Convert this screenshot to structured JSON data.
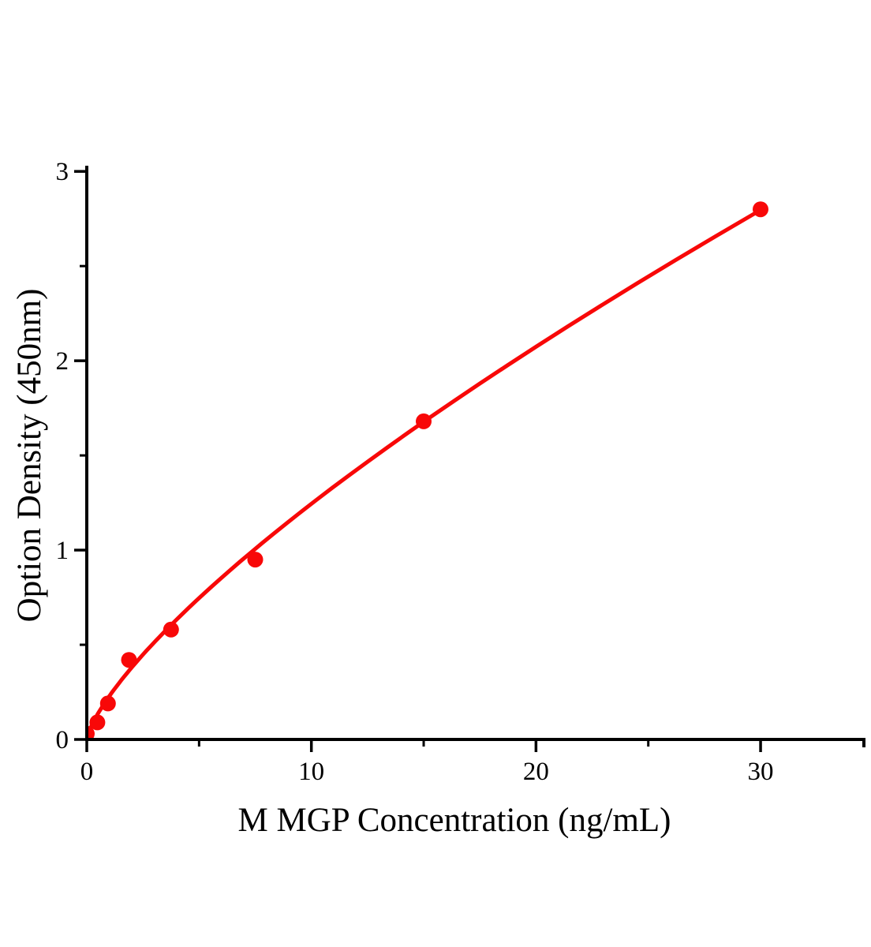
{
  "figure": {
    "background": "#ffffff",
    "axis_color": "#000000",
    "accent_red": "#f80808"
  },
  "chart_data": {
    "type": "scatter",
    "title": "",
    "xlabel": "M MGP Concentration (ng/mL)",
    "ylabel": "Option Density (450nm)",
    "series": [
      {
        "name": "standard-curve-points",
        "x": [
          0,
          0.47,
          0.94,
          1.88,
          3.75,
          7.5,
          15,
          30
        ],
        "y": [
          0.03,
          0.09,
          0.19,
          0.42,
          0.58,
          0.95,
          1.68,
          2.8
        ],
        "marker": "circle",
        "marker_color": "#f80808"
      }
    ],
    "fit_curve": {
      "type": "power",
      "equation": "y = 0.228 * x^0.737",
      "a": 0.228,
      "b": 0.737,
      "x_start": 0.07,
      "x_end": 30,
      "color": "#f80808"
    },
    "xlim": [
      0,
      34.6
    ],
    "ylim": [
      0,
      3.03
    ],
    "x_major_ticks": [
      0,
      10,
      20,
      30
    ],
    "x_minor_ticks": [
      5,
      15,
      25
    ],
    "x_axis_end_tick": 34.6,
    "y_major_ticks": [
      0,
      1,
      2,
      3
    ],
    "y_minor_ticks": [
      0.5,
      1.5,
      2.5
    ],
    "grid": false,
    "legend": null
  }
}
